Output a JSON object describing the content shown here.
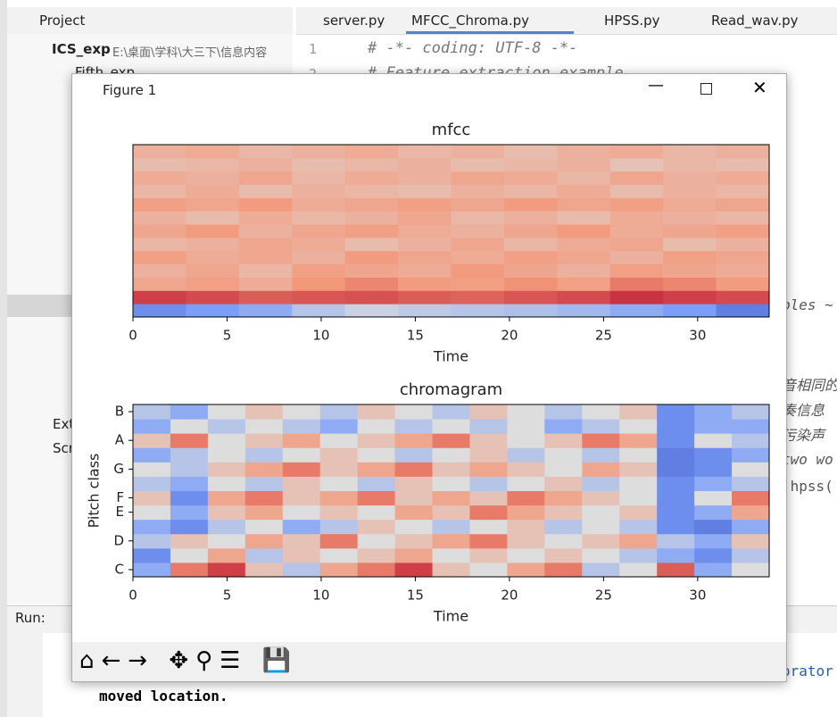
{
  "ide": {
    "project_label": "Project",
    "tabs": [
      "server.py",
      "MFCC_Chroma.py",
      "HPSS.py",
      "Read_wav.py"
    ],
    "tree": {
      "root": "ICS_exp",
      "root_path": "E:\\桌面\\学科\\大三下\\信息内容",
      "first_child": "Fifth_exp",
      "ext": "Ext",
      "scr": "Scr"
    },
    "line_numbers": [
      "1",
      "2"
    ],
    "code_lines": [
      "# -*- coding: UTF-8 -*-",
      "# Feature extraction example"
    ],
    "right_fragments": [
      "ples ~",
      "音相同的",
      "奏信息",
      "污染声",
      "two wo",
      ".hpss(",
      "orator"
    ],
    "run_label": "Run:",
    "console_line": "moved location."
  },
  "figure": {
    "title": "Figure 1"
  },
  "chart_data": [
    {
      "type": "heatmap",
      "title": "mfcc",
      "xlabel": "Time",
      "xlim": [
        0,
        33.8
      ],
      "xticks": [
        0,
        5,
        10,
        15,
        20,
        25,
        30
      ],
      "colormap": "coolwarm",
      "z": [
        [
          0.2,
          0.25,
          0.3,
          0.4,
          0.45,
          0.42,
          0.4,
          0.38,
          0.35,
          0.3,
          0.25,
          0.15
        ],
        [
          0.9,
          0.88,
          0.85,
          0.86,
          0.87,
          0.85,
          0.84,
          0.86,
          0.88,
          0.92,
          0.9,
          0.88
        ],
        [
          0.7,
          0.72,
          0.68,
          0.75,
          0.78,
          0.74,
          0.73,
          0.76,
          0.72,
          0.8,
          0.78,
          0.74
        ],
        [
          0.66,
          0.7,
          0.64,
          0.72,
          0.7,
          0.68,
          0.74,
          0.7,
          0.66,
          0.72,
          0.7,
          0.68
        ],
        [
          0.72,
          0.68,
          0.7,
          0.66,
          0.74,
          0.7,
          0.68,
          0.72,
          0.7,
          0.66,
          0.72,
          0.7
        ],
        [
          0.64,
          0.66,
          0.7,
          0.68,
          0.62,
          0.66,
          0.7,
          0.64,
          0.68,
          0.7,
          0.62,
          0.66
        ],
        [
          0.7,
          0.74,
          0.66,
          0.7,
          0.72,
          0.68,
          0.66,
          0.7,
          0.74,
          0.68,
          0.7,
          0.72
        ],
        [
          0.66,
          0.62,
          0.68,
          0.64,
          0.66,
          0.7,
          0.64,
          0.66,
          0.62,
          0.68,
          0.66,
          0.64
        ],
        [
          0.72,
          0.7,
          0.74,
          0.68,
          0.7,
          0.72,
          0.7,
          0.74,
          0.7,
          0.72,
          0.68,
          0.7
        ],
        [
          0.64,
          0.68,
          0.62,
          0.66,
          0.64,
          0.62,
          0.66,
          0.64,
          0.68,
          0.62,
          0.66,
          0.64
        ],
        [
          0.68,
          0.66,
          0.7,
          0.64,
          0.68,
          0.66,
          0.7,
          0.68,
          0.64,
          0.7,
          0.66,
          0.68
        ],
        [
          0.62,
          0.64,
          0.66,
          0.62,
          0.64,
          0.66,
          0.62,
          0.64,
          0.66,
          0.6,
          0.64,
          0.62
        ],
        [
          0.66,
          0.68,
          0.64,
          0.66,
          0.68,
          0.64,
          0.66,
          0.62,
          0.66,
          0.68,
          0.64,
          0.66
        ]
      ]
    },
    {
      "type": "heatmap",
      "title": "chromagram",
      "xlabel": "Time",
      "ylabel": "Pitch class",
      "xlim": [
        0,
        33.8
      ],
      "xticks": [
        0,
        5,
        10,
        15,
        20,
        25,
        30
      ],
      "ylim": [
        -0.5,
        11.5
      ],
      "yticks": [
        {
          "value": 0,
          "label": "C"
        },
        {
          "value": 2,
          "label": "D"
        },
        {
          "value": 4,
          "label": "E"
        },
        {
          "value": 5,
          "label": "F"
        },
        {
          "value": 7,
          "label": "G"
        },
        {
          "value": 9,
          "label": "A"
        },
        {
          "value": 11,
          "label": "B"
        }
      ],
      "colormap": "coolwarm",
      "z": [
        [
          0.3,
          0.8,
          0.9,
          0.6,
          0.4,
          0.7,
          0.8,
          0.9,
          0.6,
          0.5,
          0.7,
          0.8,
          0.4,
          0.5,
          0.85,
          0.3,
          0.5
        ],
        [
          0.2,
          0.5,
          0.7,
          0.4,
          0.6,
          0.5,
          0.6,
          0.7,
          0.5,
          0.6,
          0.5,
          0.6,
          0.5,
          0.4,
          0.3,
          0.2,
          0.4
        ],
        [
          0.4,
          0.6,
          0.5,
          0.7,
          0.6,
          0.8,
          0.5,
          0.6,
          0.7,
          0.8,
          0.6,
          0.5,
          0.6,
          0.7,
          0.4,
          0.3,
          0.6
        ],
        [
          0.3,
          0.2,
          0.4,
          0.5,
          0.3,
          0.4,
          0.6,
          0.5,
          0.4,
          0.5,
          0.6,
          0.4,
          0.5,
          0.4,
          0.2,
          0.15,
          0.3
        ],
        [
          0.5,
          0.3,
          0.6,
          0.7,
          0.5,
          0.6,
          0.5,
          0.7,
          0.6,
          0.8,
          0.7,
          0.6,
          0.5,
          0.6,
          0.2,
          0.3,
          0.7
        ],
        [
          0.6,
          0.2,
          0.7,
          0.8,
          0.6,
          0.7,
          0.8,
          0.6,
          0.7,
          0.6,
          0.8,
          0.7,
          0.6,
          0.5,
          0.2,
          0.5,
          0.8
        ],
        [
          0.4,
          0.3,
          0.5,
          0.4,
          0.6,
          0.5,
          0.4,
          0.6,
          0.5,
          0.4,
          0.5,
          0.6,
          0.4,
          0.5,
          0.2,
          0.3,
          0.4
        ],
        [
          0.5,
          0.4,
          0.6,
          0.7,
          0.8,
          0.6,
          0.7,
          0.8,
          0.6,
          0.7,
          0.6,
          0.5,
          0.7,
          0.6,
          0.15,
          0.2,
          0.5
        ],
        [
          0.3,
          0.4,
          0.5,
          0.4,
          0.5,
          0.6,
          0.5,
          0.4,
          0.5,
          0.6,
          0.4,
          0.5,
          0.4,
          0.5,
          0.15,
          0.2,
          0.3
        ],
        [
          0.6,
          0.8,
          0.5,
          0.6,
          0.7,
          0.5,
          0.6,
          0.7,
          0.8,
          0.6,
          0.5,
          0.6,
          0.8,
          0.7,
          0.2,
          0.5,
          0.4
        ],
        [
          0.3,
          0.5,
          0.4,
          0.5,
          0.4,
          0.3,
          0.5,
          0.4,
          0.5,
          0.4,
          0.5,
          0.3,
          0.4,
          0.5,
          0.2,
          0.3,
          0.3
        ],
        [
          0.4,
          0.3,
          0.5,
          0.6,
          0.5,
          0.4,
          0.6,
          0.5,
          0.4,
          0.6,
          0.5,
          0.4,
          0.5,
          0.6,
          0.2,
          0.3,
          0.4
        ]
      ]
    }
  ]
}
